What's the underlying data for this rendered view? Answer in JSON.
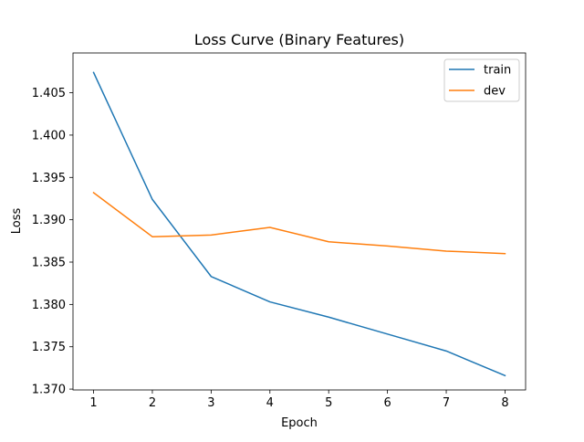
{
  "chart_data": {
    "type": "line",
    "title": "Loss Curve (Binary Features)",
    "xlabel": "Epoch",
    "ylabel": "Loss",
    "x": [
      1,
      2,
      3,
      4,
      5,
      6,
      7,
      8
    ],
    "xticks": [
      1,
      2,
      3,
      4,
      5,
      6,
      7,
      8
    ],
    "xlim": [
      0.65,
      8.35
    ],
    "yticks": [
      "1.370",
      "1.375",
      "1.380",
      "1.385",
      "1.390",
      "1.395",
      "1.400",
      "1.405"
    ],
    "ylim": [
      1.3699,
      1.4097
    ],
    "grid": false,
    "legend_position": "top-right",
    "series": [
      {
        "name": "train",
        "color": "#1f77b4",
        "values": [
          1.4074,
          1.3924,
          1.3833,
          1.3803,
          1.3785,
          1.3765,
          1.3745,
          1.3716
        ]
      },
      {
        "name": "dev",
        "color": "#ff7f0e",
        "values": [
          1.3932,
          1.388,
          1.3882,
          1.3891,
          1.3874,
          1.3869,
          1.3863,
          1.386
        ]
      }
    ]
  }
}
